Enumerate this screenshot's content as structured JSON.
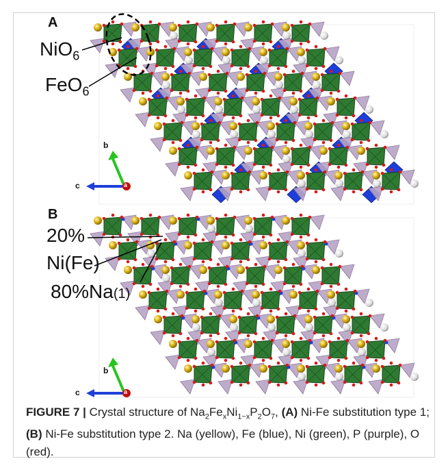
{
  "panel_a": {
    "label": "A",
    "annotations": [
      {
        "main": "NiO",
        "sub": "6"
      },
      {
        "main": "FeO",
        "sub": "6"
      }
    ],
    "axes": {
      "b": "b",
      "c": "c",
      "a": "a"
    }
  },
  "panel_b": {
    "label": "B",
    "annotations": [
      {
        "main": "20%"
      },
      {
        "main": "Ni(Fe)"
      },
      {
        "main": "80%Na",
        "small": "(1)"
      }
    ],
    "axes": {
      "b": "b",
      "c": "c",
      "a": "a"
    }
  },
  "caption": {
    "parts": [
      "FIGURE 7 |",
      " Crystal structure of Na",
      "2",
      "Fe",
      "x",
      "Ni",
      "1−x",
      "P",
      "2",
      "O",
      "7",
      ", ",
      "(A)",
      " Ni-Fe substitution type 1; ",
      "(B)",
      " Ni-Fe substitution type 2. Na (yellow), Fe (blue), Ni (green), P (purple), O (red)."
    ]
  }
}
